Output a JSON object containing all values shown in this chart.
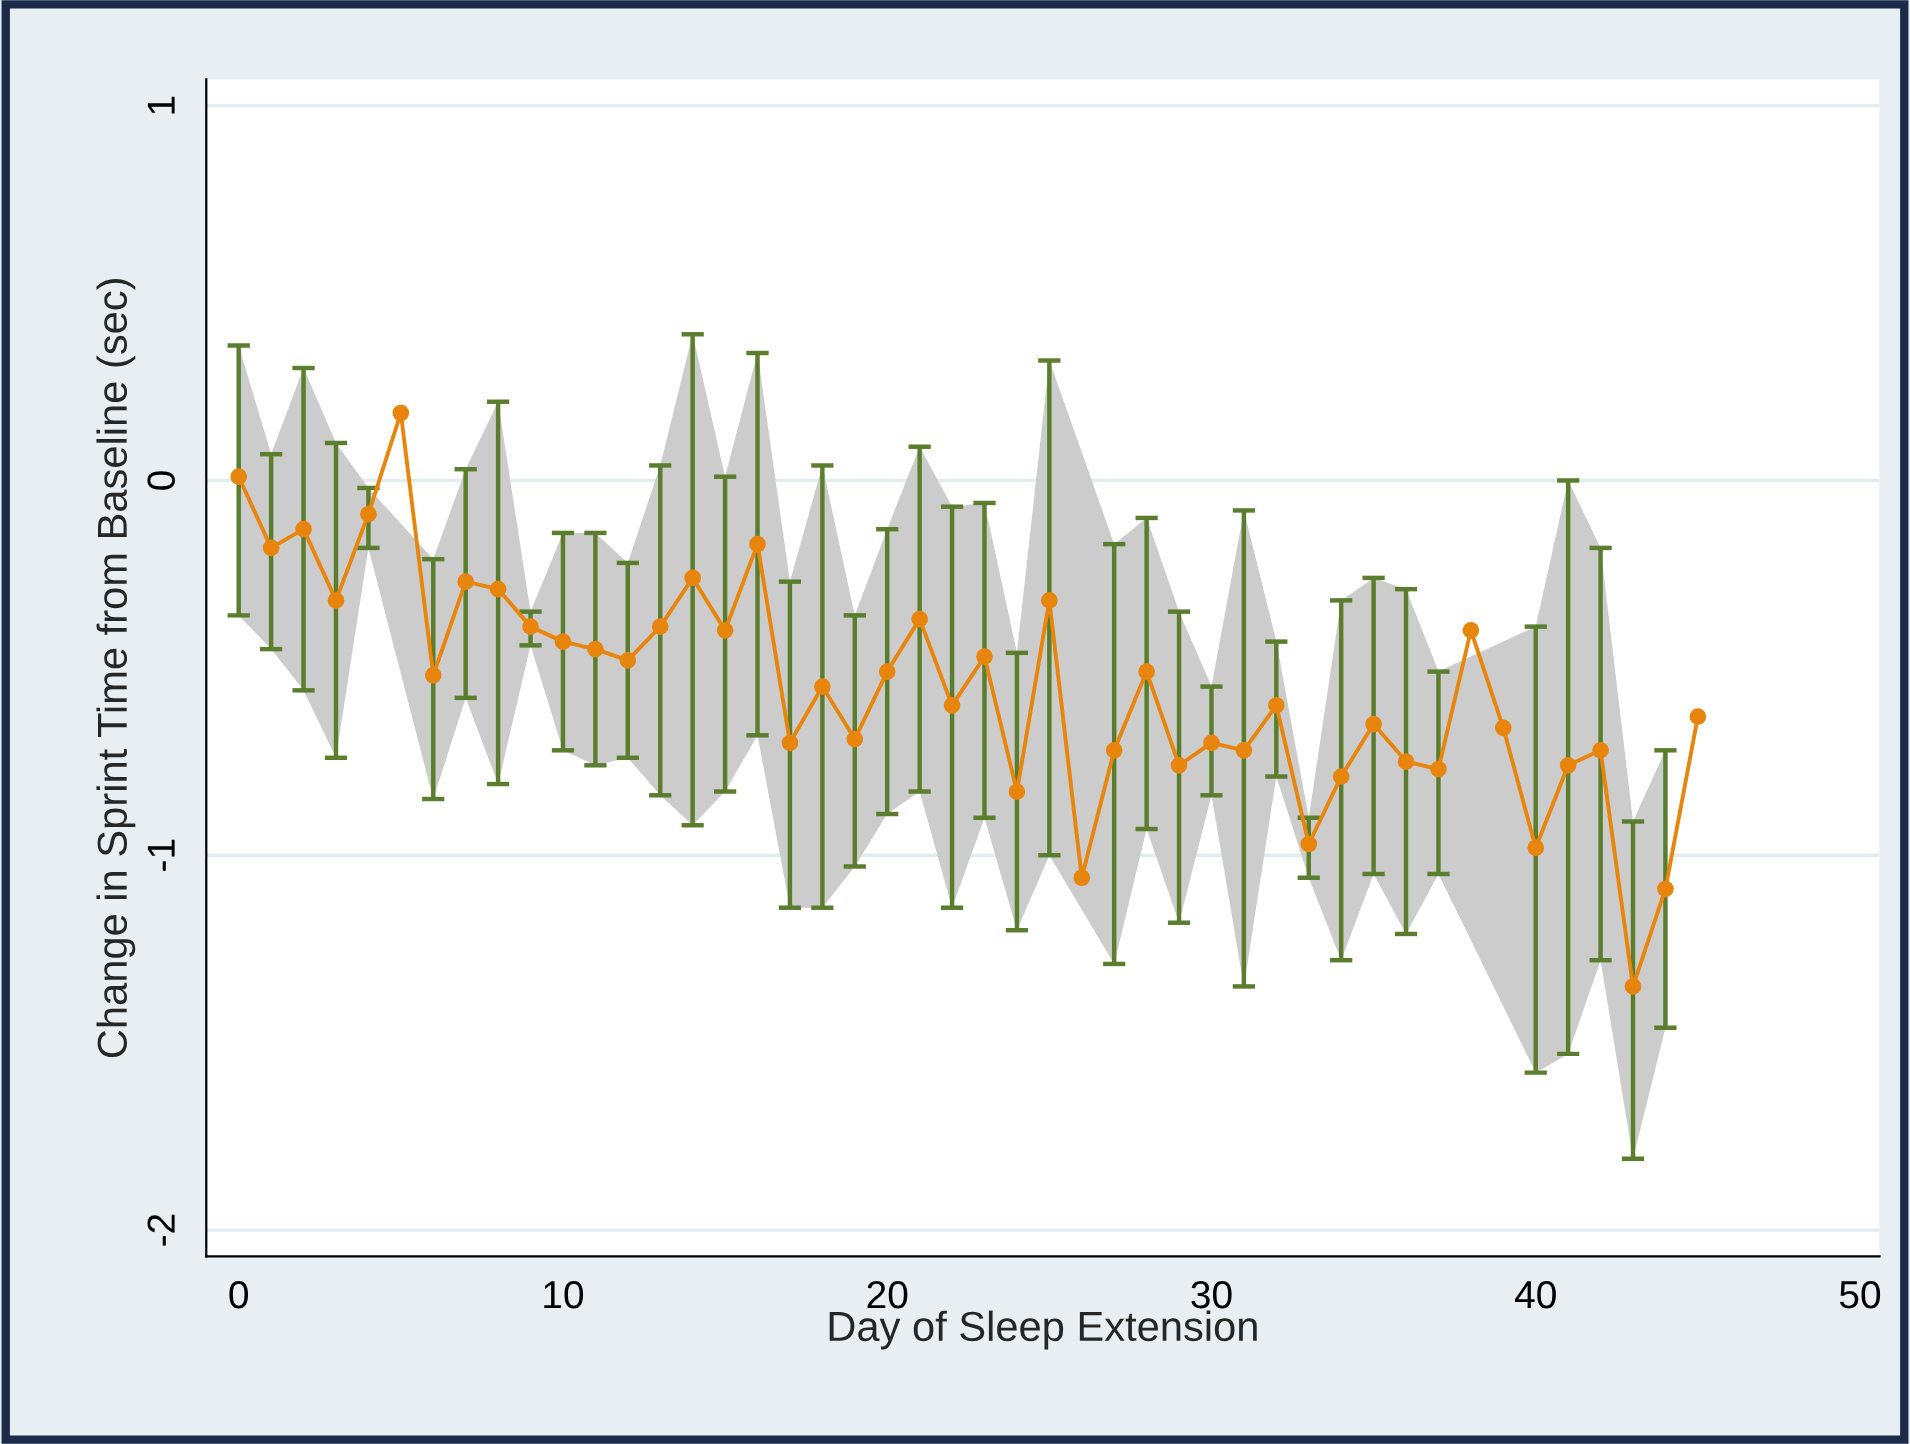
{
  "chart_data": {
    "type": "line",
    "xlabel": "Day of Sleep Extension",
    "ylabel": "Change in Sprint Time from Baseline (sec)",
    "x": [
      0,
      1,
      2,
      3,
      4,
      5,
      6,
      7,
      8,
      9,
      10,
      11,
      12,
      13,
      14,
      15,
      16,
      17,
      18,
      19,
      20,
      21,
      22,
      23,
      24,
      25,
      26,
      27,
      28,
      29,
      30,
      31,
      32,
      33,
      34,
      35,
      36,
      37,
      38,
      39,
      40,
      41,
      42,
      43,
      44,
      45
    ],
    "series": [
      {
        "color": "#e8850c",
        "marker": "circle",
        "values": [
          0.01,
          -0.18,
          -0.13,
          -0.32,
          -0.09,
          0.18,
          -0.52,
          -0.27,
          -0.29,
          -0.39,
          -0.43,
          -0.45,
          -0.48,
          -0.39,
          -0.26,
          -0.4,
          -0.17,
          -0.7,
          -0.55,
          -0.69,
          -0.51,
          -0.37,
          -0.6,
          -0.47,
          -0.83,
          -0.32,
          -1.06,
          -0.72,
          -0.51,
          -0.76,
          -0.7,
          -0.72,
          -0.6,
          -0.97,
          -0.79,
          -0.65,
          -0.75,
          -0.77,
          -0.4,
          -0.66,
          -0.98,
          -0.76,
          -0.72,
          -1.35,
          -1.09,
          -0.63
        ],
        "errors": [
          [
            -0.36,
            0.36
          ],
          [
            -0.45,
            0.07
          ],
          [
            -0.56,
            0.3
          ],
          [
            -0.74,
            0.1
          ],
          [
            -0.18,
            -0.02
          ],
          null,
          [
            -0.85,
            -0.21
          ],
          [
            -0.58,
            0.03
          ],
          [
            -0.81,
            0.21
          ],
          [
            -0.44,
            -0.35
          ],
          [
            -0.72,
            -0.14
          ],
          [
            -0.76,
            -0.14
          ],
          [
            -0.74,
            -0.22
          ],
          [
            -0.84,
            0.04
          ],
          [
            -0.92,
            0.39
          ],
          [
            -0.83,
            0.01
          ],
          [
            -0.68,
            0.34
          ],
          [
            -1.14,
            -0.27
          ],
          [
            -1.14,
            0.04
          ],
          [
            -1.03,
            -0.36
          ],
          [
            -0.89,
            -0.13
          ],
          [
            -0.83,
            0.09
          ],
          [
            -1.14,
            -0.07
          ],
          [
            -0.9,
            -0.06
          ],
          [
            -1.2,
            -0.46
          ],
          [
            -1.0,
            0.32
          ],
          null,
          [
            -1.29,
            -0.17
          ],
          [
            -0.93,
            -0.1
          ],
          [
            -1.18,
            -0.35
          ],
          [
            -0.84,
            -0.55
          ],
          [
            -1.35,
            -0.08
          ],
          [
            -0.79,
            -0.43
          ],
          [
            -1.06,
            -0.9
          ],
          [
            -1.28,
            -0.32
          ],
          [
            -1.05,
            -0.26
          ],
          [
            -1.21,
            -0.29
          ],
          [
            -1.05,
            -0.51
          ],
          null,
          null,
          [
            -1.58,
            -0.39
          ],
          [
            -1.53,
            0.0
          ],
          [
            -1.28,
            -0.18
          ],
          [
            -1.81,
            -0.91
          ],
          [
            -1.46,
            -0.72
          ],
          null
        ],
        "upper": [
          0.36,
          0.07,
          0.3,
          0.1,
          -0.02,
          null,
          -0.21,
          0.03,
          0.21,
          -0.35,
          -0.14,
          -0.14,
          -0.22,
          0.04,
          0.39,
          0.01,
          0.34,
          -0.27,
          0.04,
          -0.36,
          -0.13,
          0.09,
          -0.07,
          -0.06,
          -0.46,
          0.32,
          null,
          -0.17,
          -0.1,
          -0.35,
          -0.55,
          -0.08,
          -0.43,
          -0.9,
          -0.32,
          -0.26,
          -0.29,
          -0.51,
          null,
          null,
          -0.39,
          0.0,
          -0.18,
          -0.91,
          -0.72,
          null
        ],
        "lower": [
          -0.36,
          -0.45,
          -0.56,
          -0.74,
          -0.18,
          null,
          -0.85,
          -0.58,
          -0.81,
          -0.44,
          -0.72,
          -0.76,
          -0.74,
          -0.84,
          -0.92,
          -0.83,
          -0.68,
          -1.14,
          -1.14,
          -1.03,
          -0.89,
          -0.83,
          -1.14,
          -0.9,
          -1.2,
          -1.0,
          null,
          -1.29,
          -0.93,
          -1.18,
          -0.84,
          -1.35,
          -0.79,
          -1.06,
          -1.28,
          -1.05,
          -1.21,
          -1.05,
          null,
          null,
          -1.58,
          -1.53,
          -1.28,
          -1.81,
          -1.46,
          null
        ]
      }
    ],
    "xlim": [
      -1,
      50.6
    ],
    "ylim": [
      -2.07,
      1.07
    ],
    "xticks": [
      0,
      10,
      20,
      30,
      40,
      50
    ],
    "yticks": [
      -2,
      -1,
      0,
      1
    ],
    "grid": "y",
    "legend": false
  }
}
